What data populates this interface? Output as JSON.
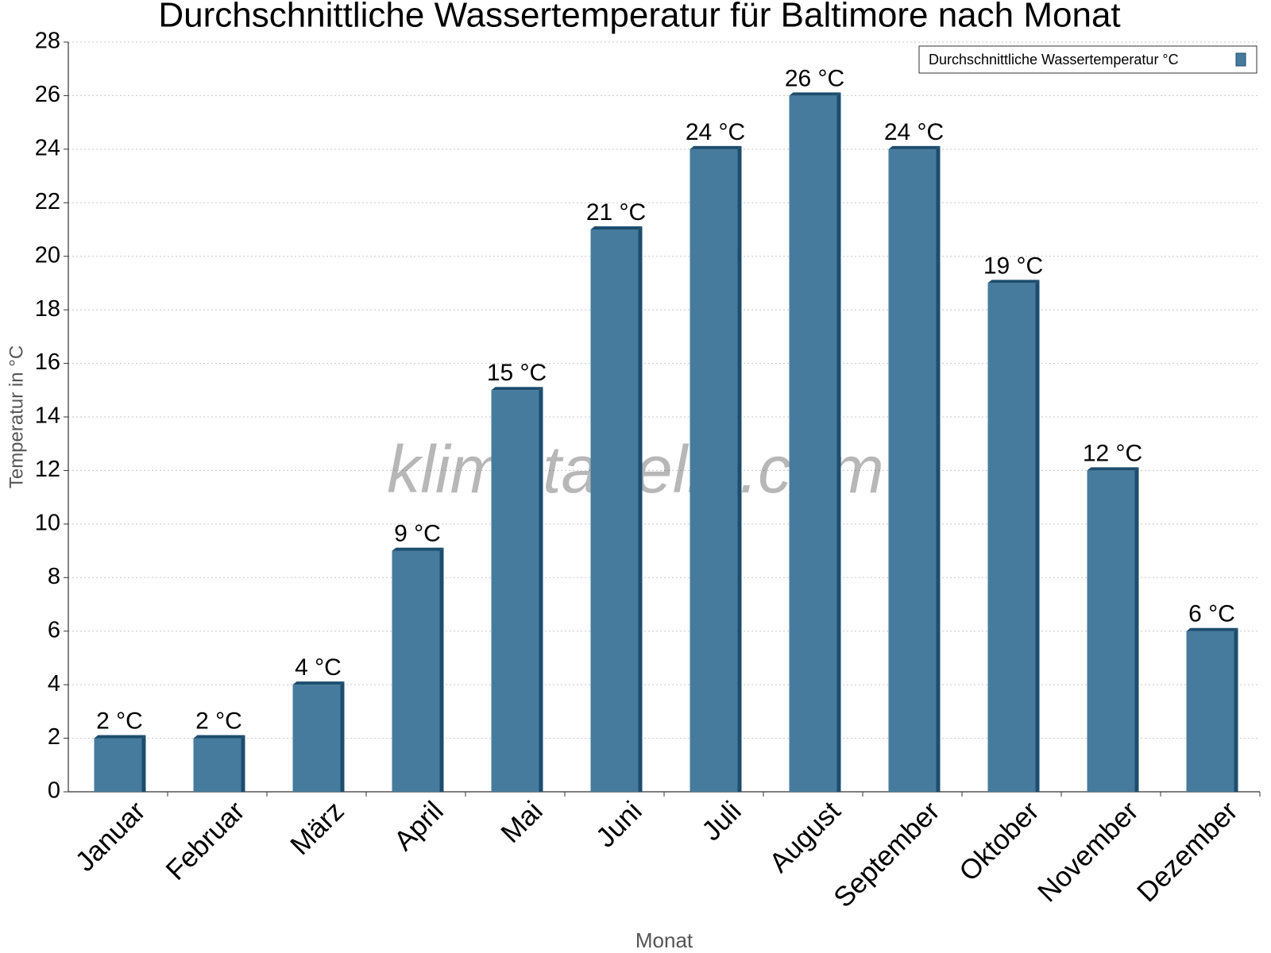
{
  "chart_data": {
    "type": "bar",
    "title": "Durchschnittliche Wassertemperatur für Baltimore nach Monat",
    "watermark": "klimatabelle.com",
    "x_label": "Monat",
    "y_label": "Temperatur in °C",
    "categories": [
      "Januar",
      "Februar",
      "März",
      "April",
      "Mai",
      "Juni",
      "Juli",
      "August",
      "September",
      "Oktober",
      "November",
      "Dezember"
    ],
    "series": [
      {
        "name": "Durchschnittliche Wassertemperatur °C",
        "color": "#467b9e",
        "values": [
          2,
          2,
          4,
          9,
          15,
          21,
          24,
          26,
          24,
          19,
          12,
          6
        ],
        "value_labels": [
          "2 °C",
          "2 °C",
          "4 °C",
          "9 °C",
          "15 °C",
          "21 °C",
          "24 °C",
          "26 °C",
          "24 °C",
          "19 °C",
          "12 °C",
          "6 °C"
        ]
      }
    ],
    "ylim": [
      0,
      28
    ],
    "yticks": [
      0,
      2,
      4,
      6,
      8,
      10,
      12,
      14,
      16,
      18,
      20,
      22,
      24,
      26,
      28
    ],
    "grid": true,
    "legend": "top-right"
  }
}
